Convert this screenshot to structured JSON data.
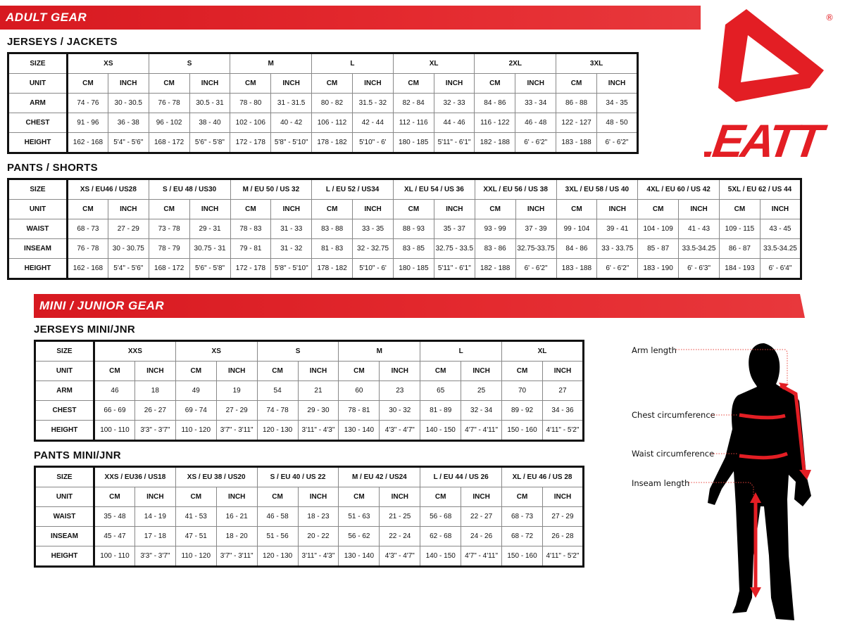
{
  "adult_banner": "ADULT GEAR",
  "mini_banner": "MINI / JUNIOR GEAR",
  "logo": {
    "text": "LEATT",
    "registered": "®",
    "brand_color": "#e31e24"
  },
  "colors": {
    "banner_red": "#e31e24",
    "table_border": "#111111"
  },
  "tables": [
    {
      "title": "JERSEYS / JACKETS",
      "size_label": "SIZE",
      "unit_label": "UNIT",
      "units": [
        "CM",
        "INCH"
      ],
      "sizes": [
        "XS",
        "S",
        "M",
        "L",
        "XL",
        "2XL",
        "3XL"
      ],
      "rows": [
        {
          "label": "ARM",
          "values": [
            "74 - 76",
            "30 - 30.5",
            "76 - 78",
            "30.5 - 31",
            "78 - 80",
            "31 - 31.5",
            "80 - 82",
            "31.5 - 32",
            "82 - 84",
            "32 - 33",
            "84 - 86",
            "33 - 34",
            "86 - 88",
            "34 - 35"
          ]
        },
        {
          "label": "CHEST",
          "values": [
            "91 - 96",
            "36 - 38",
            "96 - 102",
            "38 - 40",
            "102 - 106",
            "40 - 42",
            "106 - 112",
            "42 - 44",
            "112 - 116",
            "44 - 46",
            "116 - 122",
            "46 - 48",
            "122 - 127",
            "48 - 50"
          ]
        },
        {
          "label": "HEIGHT",
          "values": [
            "162 - 168",
            "5'4\" - 5'6\"",
            "168 - 172",
            "5'6\" - 5'8\"",
            "172 - 178",
            "5'8\" - 5'10\"",
            "178 - 182",
            "5'10\" - 6'",
            "180 - 185",
            "5'11\" - 6'1\"",
            "182 - 188",
            "6' - 6'2\"",
            "183 - 188",
            "6' - 6'2\""
          ]
        }
      ]
    },
    {
      "title": "PANTS / SHORTS",
      "size_label": "SIZE",
      "unit_label": "UNIT",
      "units": [
        "CM",
        "INCH"
      ],
      "sizes": [
        "XS / EU46 / US28",
        "S / EU 48 / US30",
        "M / EU 50 / US 32",
        "L / EU 52 / US34",
        "XL / EU 54 / US 36",
        "XXL / EU 56 / US 38",
        "3XL / EU 58 / US 40",
        "4XL / EU 60 / US 42",
        "5XL / EU 62 / US 44"
      ],
      "rows": [
        {
          "label": "WAIST",
          "values": [
            "68 - 73",
            "27 - 29",
            "73 - 78",
            "29 - 31",
            "78 - 83",
            "31 - 33",
            "83 - 88",
            "33 - 35",
            "88 - 93",
            "35 - 37",
            "93 - 99",
            "37 - 39",
            "99 - 104",
            "39 - 41",
            "104 - 109",
            "41 - 43",
            "109 - 115",
            "43 - 45"
          ]
        },
        {
          "label": "INSEAM",
          "values": [
            "76 - 78",
            "30 - 30.75",
            "78 - 79",
            "30.75 - 31",
            "79 - 81",
            "31 - 32",
            "81 - 83",
            "32 - 32.75",
            "83 - 85",
            "32.75 - 33.5",
            "83 - 86",
            "32.75-33.75",
            "84 - 86",
            "33 - 33.75",
            "85 - 87",
            "33.5-34.25",
            "86 - 87",
            "33.5-34.25"
          ]
        },
        {
          "label": "HEIGHT",
          "values": [
            "162 - 168",
            "5'4\" - 5'6\"",
            "168 - 172",
            "5'6\" - 5'8\"",
            "172 - 178",
            "5'8\" - 5'10\"",
            "178 - 182",
            "5'10\" - 6'",
            "180 - 185",
            "5'11\" - 6'1\"",
            "182 - 188",
            "6' - 6'2\"",
            "183 - 188",
            "6' - 6'2\"",
            "183 - 190",
            "6' - 6'3\"",
            "184 - 193",
            "6' - 6'4\""
          ]
        }
      ]
    },
    {
      "title": "JERSEYS MINI/JNR",
      "size_label": "SIZE",
      "unit_label": "UNIT",
      "units": [
        "CM",
        "INCH"
      ],
      "sizes": [
        "XXS",
        "XS",
        "S",
        "M",
        "L",
        "XL"
      ],
      "rows": [
        {
          "label": "ARM",
          "values": [
            "46",
            "18",
            "49",
            "19",
            "54",
            "21",
            "60",
            "23",
            "65",
            "25",
            "70",
            "27"
          ]
        },
        {
          "label": "CHEST",
          "values": [
            "66 - 69",
            "26 - 27",
            "69 - 74",
            "27 - 29",
            "74 - 78",
            "29 - 30",
            "78 - 81",
            "30 - 32",
            "81 - 89",
            "32 - 34",
            "89 - 92",
            "34 - 36"
          ]
        },
        {
          "label": "HEIGHT",
          "values": [
            "100 - 110",
            "3'3\" - 3'7\"",
            "110 - 120",
            "3'7\" - 3'11\"",
            "120 - 130",
            "3'11\" - 4'3\"",
            "130 - 140",
            "4'3\" - 4'7\"",
            "140 - 150",
            "4'7\" - 4'11\"",
            "150 - 160",
            "4'11\" - 5'2\""
          ]
        }
      ]
    },
    {
      "title": "PANTS MINI/JNR",
      "size_label": "SIZE",
      "unit_label": "UNIT",
      "units": [
        "CM",
        "INCH"
      ],
      "sizes": [
        "XXS / EU36 / US18",
        "XS / EU 38 / US20",
        "S / EU 40 / US 22",
        "M / EU 42 / US24",
        "L / EU 44 / US 26",
        "XL / EU 46 / US 28"
      ],
      "rows": [
        {
          "label": "WAIST",
          "values": [
            "35 - 48",
            "14 - 19",
            "41 - 53",
            "16 - 21",
            "46 - 58",
            "18 - 23",
            "51 - 63",
            "21 - 25",
            "56 - 68",
            "22 - 27",
            "68 - 73",
            "27 - 29"
          ]
        },
        {
          "label": "INSEAM",
          "values": [
            "45 - 47",
            "17 - 18",
            "47 - 51",
            "18 - 20",
            "51 - 56",
            "20 - 22",
            "56 - 62",
            "22 - 24",
            "62 - 68",
            "24 - 26",
            "68 - 72",
            "26 - 28"
          ]
        },
        {
          "label": "HEIGHT",
          "values": [
            "100 - 110",
            "3'3\" - 3'7\"",
            "110 - 120",
            "3'7\" - 3'11\"",
            "120 - 130",
            "3'11\" - 4'3\"",
            "130 - 140",
            "4'3\" - 4'7\"",
            "140 - 150",
            "4'7\" - 4'11\"",
            "150 - 160",
            "4'11\" - 5'2\""
          ]
        }
      ]
    }
  ],
  "figure": {
    "labels": {
      "arm": "Arm length",
      "chest": "Chest circumference",
      "waist": "Waist circumference",
      "inseam": "Inseam length"
    }
  }
}
